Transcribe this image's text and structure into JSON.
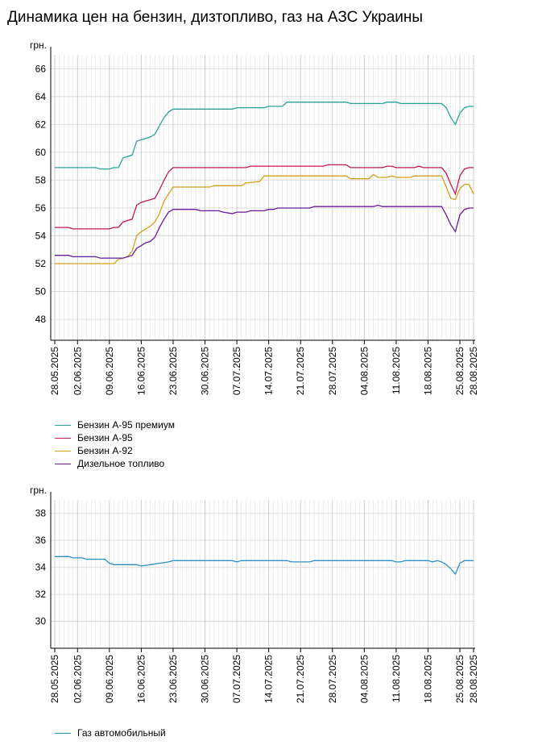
{
  "page": {
    "title": "Динамика цен на бензин, дизтопливо, газ на АЗС Украины"
  },
  "chart_data": [
    {
      "type": "line",
      "ylabel": "грн.",
      "ylim": [
        46.5,
        67
      ],
      "yticks": [
        48,
        50,
        52,
        54,
        56,
        58,
        60,
        62,
        64,
        66
      ],
      "xlim": [
        "2025-05-28",
        "2025-08-28"
      ],
      "xticks": [
        "28.05.2025",
        "02.06.2025",
        "09.06.2025",
        "16.06.2025",
        "23.06.2025",
        "30.06.2025",
        "07.07.2025",
        "14.07.2025",
        "21.07.2025",
        "28.07.2025",
        "04.08.2025",
        "11.08.2025",
        "18.08.2025",
        "25.08.2025",
        "28.08.2025"
      ],
      "grid": true,
      "legend": "bottom-left",
      "series": [
        {
          "name": "Бензин А-95 премиум",
          "color": "#2aa198",
          "points": [
            [
              "2025-05-28",
              58.9
            ],
            [
              "2025-06-06",
              58.9
            ],
            [
              "2025-06-07",
              58.8
            ],
            [
              "2025-06-09",
              58.8
            ],
            [
              "2025-06-10",
              58.9
            ],
            [
              "2025-06-11",
              58.9
            ],
            [
              "2025-06-12",
              59.6
            ],
            [
              "2025-06-14",
              59.8
            ],
            [
              "2025-06-15",
              60.8
            ],
            [
              "2025-06-16",
              60.9
            ],
            [
              "2025-06-17",
              61.0
            ],
            [
              "2025-06-18",
              61.1
            ],
            [
              "2025-06-19",
              61.3
            ],
            [
              "2025-06-20",
              61.9
            ],
            [
              "2025-06-21",
              62.5
            ],
            [
              "2025-06-22",
              62.9
            ],
            [
              "2025-06-23",
              63.1
            ],
            [
              "2025-07-06",
              63.1
            ],
            [
              "2025-07-07",
              63.2
            ],
            [
              "2025-07-13",
              63.2
            ],
            [
              "2025-07-14",
              63.3
            ],
            [
              "2025-07-17",
              63.3
            ],
            [
              "2025-07-18",
              63.6
            ],
            [
              "2025-07-31",
              63.6
            ],
            [
              "2025-08-01",
              63.5
            ],
            [
              "2025-08-08",
              63.5
            ],
            [
              "2025-08-09",
              63.6
            ],
            [
              "2025-08-11",
              63.6
            ],
            [
              "2025-08-12",
              63.5
            ],
            [
              "2025-08-21",
              63.5
            ],
            [
              "2025-08-22",
              63.2
            ],
            [
              "2025-08-23",
              62.5
            ],
            [
              "2025-08-24",
              62.0
            ],
            [
              "2025-08-25",
              62.8
            ],
            [
              "2025-08-26",
              63.2
            ],
            [
              "2025-08-27",
              63.3
            ],
            [
              "2025-08-28",
              63.3
            ]
          ]
        },
        {
          "name": "Бензин А-95",
          "color": "#c2185b",
          "points": [
            [
              "2025-05-28",
              54.6
            ],
            [
              "2025-05-31",
              54.6
            ],
            [
              "2025-06-01",
              54.5
            ],
            [
              "2025-06-09",
              54.5
            ],
            [
              "2025-06-10",
              54.6
            ],
            [
              "2025-06-11",
              54.6
            ],
            [
              "2025-06-12",
              55.0
            ],
            [
              "2025-06-14",
              55.2
            ],
            [
              "2025-06-15",
              56.2
            ],
            [
              "2025-06-16",
              56.4
            ],
            [
              "2025-06-17",
              56.5
            ],
            [
              "2025-06-18",
              56.6
            ],
            [
              "2025-06-19",
              56.7
            ],
            [
              "2025-06-20",
              57.3
            ],
            [
              "2025-06-21",
              58.0
            ],
            [
              "2025-06-22",
              58.6
            ],
            [
              "2025-06-23",
              58.9
            ],
            [
              "2025-07-09",
              58.9
            ],
            [
              "2025-07-10",
              59.0
            ],
            [
              "2025-07-26",
              59.0
            ],
            [
              "2025-07-27",
              59.1
            ],
            [
              "2025-07-31",
              59.1
            ],
            [
              "2025-08-01",
              58.9
            ],
            [
              "2025-08-08",
              58.9
            ],
            [
              "2025-08-09",
              59.0
            ],
            [
              "2025-08-10",
              59.0
            ],
            [
              "2025-08-11",
              58.9
            ],
            [
              "2025-08-15",
              58.9
            ],
            [
              "2025-08-16",
              59.0
            ],
            [
              "2025-08-17",
              58.9
            ],
            [
              "2025-08-21",
              58.9
            ],
            [
              "2025-08-22",
              58.5
            ],
            [
              "2025-08-23",
              57.7
            ],
            [
              "2025-08-24",
              57.0
            ],
            [
              "2025-08-25",
              58.3
            ],
            [
              "2025-08-26",
              58.8
            ],
            [
              "2025-08-27",
              58.9
            ],
            [
              "2025-08-28",
              58.9
            ]
          ]
        },
        {
          "name": "Бензин А-92",
          "color": "#d4a017",
          "points": [
            [
              "2025-05-28",
              52.0
            ],
            [
              "2025-06-09",
              52.0
            ],
            [
              "2025-06-10",
              52.0
            ],
            [
              "2025-06-11",
              52.3
            ],
            [
              "2025-06-12",
              52.4
            ],
            [
              "2025-06-13",
              52.5
            ],
            [
              "2025-06-14",
              52.9
            ],
            [
              "2025-06-15",
              54.0
            ],
            [
              "2025-06-16",
              54.3
            ],
            [
              "2025-06-17",
              54.5
            ],
            [
              "2025-06-18",
              54.7
            ],
            [
              "2025-06-19",
              55.0
            ],
            [
              "2025-06-20",
              55.6
            ],
            [
              "2025-06-21",
              56.5
            ],
            [
              "2025-06-22",
              57.0
            ],
            [
              "2025-06-23",
              57.5
            ],
            [
              "2025-07-01",
              57.5
            ],
            [
              "2025-07-02",
              57.6
            ],
            [
              "2025-07-08",
              57.6
            ],
            [
              "2025-07-09",
              57.8
            ],
            [
              "2025-07-12",
              57.9
            ],
            [
              "2025-07-13",
              58.3
            ],
            [
              "2025-07-31",
              58.3
            ],
            [
              "2025-08-01",
              58.1
            ],
            [
              "2025-08-05",
              58.1
            ],
            [
              "2025-08-06",
              58.4
            ],
            [
              "2025-08-07",
              58.2
            ],
            [
              "2025-08-09",
              58.2
            ],
            [
              "2025-08-10",
              58.3
            ],
            [
              "2025-08-11",
              58.2
            ],
            [
              "2025-08-14",
              58.2
            ],
            [
              "2025-08-15",
              58.3
            ],
            [
              "2025-08-21",
              58.3
            ],
            [
              "2025-08-22",
              57.5
            ],
            [
              "2025-08-23",
              56.7
            ],
            [
              "2025-08-24",
              56.6
            ],
            [
              "2025-08-25",
              57.4
            ],
            [
              "2025-08-26",
              57.7
            ],
            [
              "2025-08-27",
              57.7
            ],
            [
              "2025-08-28",
              57.0
            ]
          ]
        },
        {
          "name": "Дизельное топливо",
          "color": "#6a1b9a",
          "points": [
            [
              "2025-05-28",
              52.6
            ],
            [
              "2025-05-31",
              52.6
            ],
            [
              "2025-06-01",
              52.5
            ],
            [
              "2025-06-06",
              52.5
            ],
            [
              "2025-06-07",
              52.4
            ],
            [
              "2025-06-12",
              52.4
            ],
            [
              "2025-06-13",
              52.5
            ],
            [
              "2025-06-14",
              52.6
            ],
            [
              "2025-06-15",
              53.1
            ],
            [
              "2025-06-16",
              53.3
            ],
            [
              "2025-06-17",
              53.5
            ],
            [
              "2025-06-18",
              53.6
            ],
            [
              "2025-06-19",
              53.9
            ],
            [
              "2025-06-20",
              54.6
            ],
            [
              "2025-06-21",
              55.2
            ],
            [
              "2025-06-22",
              55.7
            ],
            [
              "2025-06-23",
              55.9
            ],
            [
              "2025-06-28",
              55.9
            ],
            [
              "2025-06-29",
              55.8
            ],
            [
              "2025-07-03",
              55.8
            ],
            [
              "2025-07-04",
              55.7
            ],
            [
              "2025-07-06",
              55.6
            ],
            [
              "2025-07-07",
              55.7
            ],
            [
              "2025-07-09",
              55.7
            ],
            [
              "2025-07-10",
              55.8
            ],
            [
              "2025-07-13",
              55.8
            ],
            [
              "2025-07-14",
              55.9
            ],
            [
              "2025-07-15",
              55.9
            ],
            [
              "2025-07-16",
              56.0
            ],
            [
              "2025-07-23",
              56.0
            ],
            [
              "2025-07-24",
              56.1
            ],
            [
              "2025-08-06",
              56.1
            ],
            [
              "2025-08-07",
              56.2
            ],
            [
              "2025-08-08",
              56.1
            ],
            [
              "2025-08-21",
              56.1
            ],
            [
              "2025-08-22",
              55.5
            ],
            [
              "2025-08-23",
              54.8
            ],
            [
              "2025-08-24",
              54.3
            ],
            [
              "2025-08-25",
              55.5
            ],
            [
              "2025-08-26",
              55.9
            ],
            [
              "2025-08-27",
              56.0
            ],
            [
              "2025-08-28",
              56.0
            ]
          ]
        }
      ]
    },
    {
      "type": "line",
      "ylabel": "грн.",
      "ylim": [
        28,
        39
      ],
      "yticks": [
        30,
        32,
        34,
        36,
        38
      ],
      "xlim": [
        "2025-05-28",
        "2025-08-28"
      ],
      "xticks": [
        "28.05.2025",
        "02.06.2025",
        "09.06.2025",
        "16.06.2025",
        "23.06.2025",
        "30.06.2025",
        "07.07.2025",
        "14.07.2025",
        "21.07.2025",
        "28.07.2025",
        "04.08.2025",
        "11.08.2025",
        "18.08.2025",
        "25.08.2025",
        "28.08.2025"
      ],
      "grid": true,
      "legend": "bottom-left",
      "series": [
        {
          "name": "Газ автомобильный",
          "color": "#2e8fc0",
          "points": [
            [
              "2025-05-28",
              34.8
            ],
            [
              "2025-05-31",
              34.8
            ],
            [
              "2025-06-01",
              34.7
            ],
            [
              "2025-06-03",
              34.7
            ],
            [
              "2025-06-04",
              34.6
            ],
            [
              "2025-06-08",
              34.6
            ],
            [
              "2025-06-09",
              34.3
            ],
            [
              "2025-06-10",
              34.2
            ],
            [
              "2025-06-15",
              34.2
            ],
            [
              "2025-06-16",
              34.1
            ],
            [
              "2025-06-18",
              34.2
            ],
            [
              "2025-06-20",
              34.3
            ],
            [
              "2025-06-22",
              34.4
            ],
            [
              "2025-06-23",
              34.5
            ],
            [
              "2025-07-06",
              34.5
            ],
            [
              "2025-07-07",
              34.4
            ],
            [
              "2025-07-08",
              34.5
            ],
            [
              "2025-07-18",
              34.5
            ],
            [
              "2025-07-19",
              34.4
            ],
            [
              "2025-07-23",
              34.4
            ],
            [
              "2025-07-24",
              34.5
            ],
            [
              "2025-08-10",
              34.5
            ],
            [
              "2025-08-11",
              34.4
            ],
            [
              "2025-08-12",
              34.4
            ],
            [
              "2025-08-13",
              34.5
            ],
            [
              "2025-08-18",
              34.5
            ],
            [
              "2025-08-19",
              34.4
            ],
            [
              "2025-08-20",
              34.5
            ],
            [
              "2025-08-21",
              34.4
            ],
            [
              "2025-08-22",
              34.2
            ],
            [
              "2025-08-23",
              33.9
            ],
            [
              "2025-08-24",
              33.5
            ],
            [
              "2025-08-25",
              34.3
            ],
            [
              "2025-08-26",
              34.5
            ],
            [
              "2025-08-28",
              34.5
            ]
          ]
        }
      ]
    }
  ]
}
